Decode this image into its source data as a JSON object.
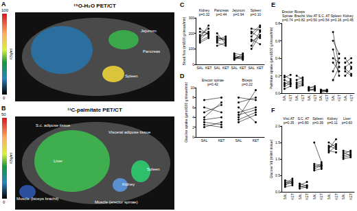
{
  "images": [
    {
      "label": "A",
      "title": "¹⁵O-H₂O PET/CT",
      "colorbar": {
        "max": 100,
        "min": 0,
        "unit": "KBq/ml"
      },
      "annotations": [
        "Jejunum",
        "Pancreas",
        "Spleen"
      ]
    },
    {
      "label": "B",
      "title": "¹¹C-palmitate PET/CT",
      "colorbar": {
        "max": 50,
        "min": 0,
        "unit": "KBq/ml"
      },
      "annotations": [
        "S.c. adipose tissue",
        "Visceral adipose tissue",
        "Liver",
        "Spleen",
        "Kidney",
        "Muscle (biceps brachii)",
        "Muscle (erector spinae)"
      ]
    }
  ],
  "chart_data": [
    {
      "type": "line",
      "label": "C",
      "y_label": "Blood flow (ml/100 g tissue/min)",
      "categories": [
        "SAL",
        "KET"
      ],
      "color": "#000000",
      "marker": "circle",
      "ylim": [
        0,
        300
      ],
      "yticks": [
        0,
        100,
        200,
        300
      ],
      "groups": [
        {
          "name": "Kidney",
          "p": "p=0.32",
          "values": [
            [
              160,
              210
            ],
            [
              190,
              230
            ],
            [
              140,
              170
            ],
            [
              210,
              200
            ],
            [
              170,
              250
            ],
            [
              230,
              190
            ],
            [
              180,
              200
            ],
            [
              150,
              180
            ]
          ]
        },
        {
          "name": "Pancreas",
          "p": "p=0.44",
          "values": [
            [
              150,
              170
            ],
            [
              200,
              130
            ],
            [
              170,
              160
            ],
            [
              120,
              140
            ],
            [
              180,
              150
            ],
            [
              160,
              180
            ],
            [
              140,
              120
            ]
          ]
        },
        {
          "name": "Jejunum",
          "p": "p=0.94",
          "values": [
            [
              40,
              50
            ],
            [
              60,
              40
            ],
            [
              30,
              70
            ],
            [
              50,
              30
            ],
            [
              70,
              60
            ],
            [
              45,
              50
            ],
            [
              35,
              40
            ]
          ]
        },
        {
          "name": "Spleen",
          "p": "p=0.10",
          "values": [
            [
              120,
              210
            ],
            [
              200,
              250
            ],
            [
              150,
              180
            ],
            [
              230,
              220
            ],
            [
              100,
              190
            ],
            [
              180,
              240
            ],
            [
              160,
              130
            ],
            [
              210,
              170
            ]
          ]
        }
      ]
    },
    {
      "type": "line",
      "label": "D",
      "y_label": "Glucose uptake (µmol/100 g tissue/min)",
      "categories": [
        "SAL",
        "KET"
      ],
      "color": "#000000",
      "marker": "circle",
      "ylim": [
        0,
        10
      ],
      "yticks": [
        0,
        2,
        4,
        6,
        8,
        10
      ],
      "groups": [
        {
          "name": "Erector spinae",
          "p": "p=0.42",
          "values": [
            [
              2,
              3
            ],
            [
              3,
              2.5
            ],
            [
              5,
              6.5
            ],
            [
              6,
              5
            ],
            [
              4,
              7
            ],
            [
              3.5,
              4
            ],
            [
              7.5,
              8
            ],
            [
              2.5,
              2
            ]
          ]
        },
        {
          "name": "Biceps",
          "p": "p=0.22",
          "values": [
            [
              4,
              9.5
            ],
            [
              5,
              6
            ],
            [
              3,
              4.5
            ],
            [
              7,
              8
            ],
            [
              4.5,
              5.5
            ],
            [
              6,
              3
            ],
            [
              3.5,
              5
            ],
            [
              8,
              7.5
            ]
          ]
        }
      ]
    },
    {
      "type": "line",
      "label": "E",
      "y_label": "Palmitate uptake (µmol/100 g tissue/min)",
      "categories": [
        "SAL",
        "KET"
      ],
      "color": "#000000",
      "marker": "circle",
      "ylim": [
        0,
        0.8
      ],
      "yticks": [
        {
          "value": 0,
          "label": "0.0"
        },
        {
          "value": 0.2,
          "label": "0.2"
        },
        {
          "value": 0.4,
          "label": "0.4"
        },
        {
          "value": 0.6,
          "label": "0.6"
        },
        {
          "value": 0.8,
          "label": "0.8"
        }
      ],
      "groups": [
        {
          "name": "Erector Spinae",
          "p": "p=0.74",
          "values": [
            [
              0.1,
              0.14
            ],
            [
              0.15,
              0.12
            ],
            [
              0.05,
              0.08
            ],
            [
              0.2,
              0.16
            ],
            [
              0.12,
              0.1
            ],
            [
              0.08,
              0.11
            ],
            [
              0.18,
              0.21
            ]
          ]
        },
        {
          "name": "Biceps Brachii",
          "p": "p=0.82",
          "values": [
            [
              0.12,
              0.14
            ],
            [
              0.08,
              0.1
            ],
            [
              0.2,
              0.16
            ],
            [
              0.15,
              0.18
            ],
            [
              0.06,
              0.09
            ],
            [
              0.1,
              0.12
            ]
          ]
        },
        {
          "name": "Visc AT",
          "p": "p=0.50",
          "values": [
            [
              0.05,
              0.04
            ],
            [
              0.03,
              0.05
            ],
            [
              0.07,
              0.06
            ],
            [
              0.04,
              0.03
            ],
            [
              0.06,
              0.08
            ]
          ]
        },
        {
          "name": "S.C. AT",
          "p": "p=0.54",
          "values": [
            [
              0.03,
              0.02
            ],
            [
              0.02,
              0.03
            ],
            [
              0.04,
              0.03
            ],
            [
              0.01,
              0.02
            ],
            [
              0.03,
              0.04
            ]
          ]
        },
        {
          "name": "Spleen",
          "p": "p=0.16",
          "values": [
            [
              0.7,
              0.3
            ],
            [
              0.6,
              0.45
            ],
            [
              0.35,
              0.25
            ],
            [
              0.25,
              0.4
            ],
            [
              0.5,
              0.2
            ],
            [
              0.15,
              0.3
            ],
            [
              0.4,
              0.35
            ]
          ]
        },
        {
          "name": "Kidney",
          "p": "p=0.45",
          "values": [
            [
              0.3,
              0.35
            ],
            [
              0.25,
              0.2
            ],
            [
              0.4,
              0.3
            ],
            [
              0.2,
              0.28
            ],
            [
              0.35,
              0.4
            ],
            [
              0.28,
              0.22
            ]
          ]
        }
      ]
    },
    {
      "type": "line",
      "label": "F",
      "y_label": "Glucose Vd (ml/ml tissue)",
      "categories": [
        "SAL",
        "KET"
      ],
      "color": "#000000",
      "marker": "circle",
      "ylim": [
        0,
        2
      ],
      "yticks": [
        {
          "value": 0,
          "label": "0.0"
        },
        {
          "value": 0.5,
          "label": "0.5"
        },
        {
          "value": 1,
          "label": "1.0"
        },
        {
          "value": 1.5,
          "label": "1.5"
        },
        {
          "value": 2,
          "label": "2.0"
        }
      ],
      "groups": [
        {
          "name": "Visc AT",
          "p": "p=0.35",
          "values": [
            [
              0.2,
              0.35
            ],
            [
              0.3,
              0.25
            ],
            [
              0.25,
              0.4
            ],
            [
              0.15,
              0.2
            ],
            [
              0.35,
              0.3
            ],
            [
              0.22,
              0.28
            ]
          ]
        },
        {
          "name": "S.C. AT",
          "p": "p=0.80",
          "values": [
            [
              0.15,
              0.2
            ],
            [
              0.25,
              0.18
            ],
            [
              0.1,
              0.15
            ],
            [
              0.2,
              0.3
            ],
            [
              0.18,
              0.12
            ]
          ]
        },
        {
          "name": "Spleen",
          "p": "p=0.39",
          "values": [
            [
              0.7,
              0.8
            ],
            [
              0.8,
              0.75
            ],
            [
              1.5,
              0.9
            ],
            [
              0.75,
              0.85
            ],
            [
              0.65,
              0.7
            ],
            [
              0.85,
              0.8
            ]
          ]
        },
        {
          "name": "Kidney",
          "p": "p=0.11",
          "values": [
            [
              1.2,
              1.4
            ],
            [
              1.4,
              1.3
            ],
            [
              1.3,
              1.6
            ],
            [
              1.5,
              1.35
            ],
            [
              1.25,
              1.2
            ],
            [
              1.35,
              1.45
            ]
          ]
        },
        {
          "name": "Liver",
          "p": "p=0.60",
          "values": [
            [
              1.1,
              1.15
            ],
            [
              1.2,
              1.1
            ],
            [
              1.0,
              1.05
            ],
            [
              1.15,
              1.25
            ],
            [
              1.05,
              1.1
            ],
            [
              1.25,
              1.2
            ]
          ]
        }
      ]
    }
  ]
}
